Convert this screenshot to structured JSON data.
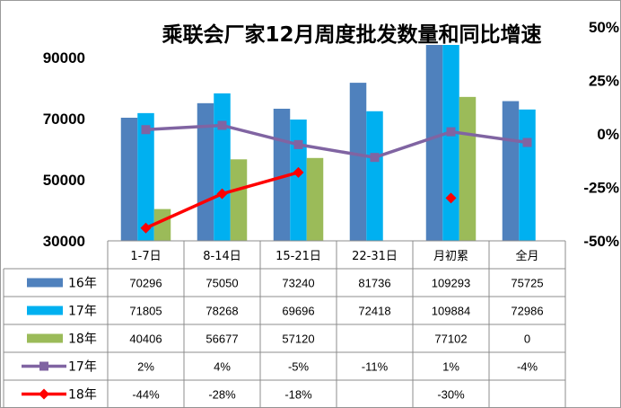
{
  "chart_data": {
    "type": "bar",
    "title": "乘联会厂家12月周度批发数量和同比增速",
    "categories": [
      "1-7日",
      "8-14日",
      "15-21日",
      "22-31日",
      "月初累",
      "全月"
    ],
    "y_left": {
      "ylim": [
        30000,
        100000
      ],
      "ticks": [
        30000,
        50000,
        70000,
        90000
      ],
      "tick_labels": [
        "30000",
        "50000",
        "70000",
        "90000"
      ]
    },
    "y_right": {
      "ylim": [
        -50,
        50
      ],
      "ticks": [
        -50,
        -25,
        0,
        25,
        50
      ],
      "tick_labels": [
        "-50%",
        "-25%",
        "0%",
        "25%",
        "50%"
      ]
    },
    "series": [
      {
        "name": "16年",
        "kind": "bar",
        "color": "#4F81BD",
        "values": [
          70296,
          75050,
          73240,
          81736,
          109293,
          75725
        ],
        "labels": [
          "70296",
          "75050",
          "73240",
          "81736",
          "109293",
          "75725"
        ]
      },
      {
        "name": "17年",
        "kind": "bar",
        "color": "#00B0F0",
        "values": [
          71805,
          78268,
          69696,
          72418,
          109884,
          72986
        ],
        "labels": [
          "71805",
          "78268",
          "69696",
          "72418",
          "109884",
          "72986"
        ]
      },
      {
        "name": "18年",
        "kind": "bar",
        "color": "#9BBB59",
        "values": [
          40406,
          56677,
          57120,
          null,
          77102,
          0
        ],
        "labels": [
          "40406",
          "56677",
          "57120",
          "",
          "77102",
          "0"
        ]
      },
      {
        "name": "17年",
        "kind": "line",
        "axis": "right",
        "color": "#8064A2",
        "marker": "square",
        "values": [
          2,
          4,
          -5,
          -11,
          1,
          -4
        ],
        "labels": [
          "2%",
          "4%",
          "-5%",
          "-11%",
          "1%",
          "-4%"
        ]
      },
      {
        "name": "18年",
        "kind": "line",
        "axis": "right",
        "color": "#FF0000",
        "marker": "diamond",
        "values": [
          -44,
          -28,
          -18,
          null,
          -30,
          null
        ],
        "labels": [
          "-44%",
          "-28%",
          "-18%",
          "",
          "-30%",
          ""
        ]
      }
    ],
    "legend": "data-table",
    "grid": false
  }
}
